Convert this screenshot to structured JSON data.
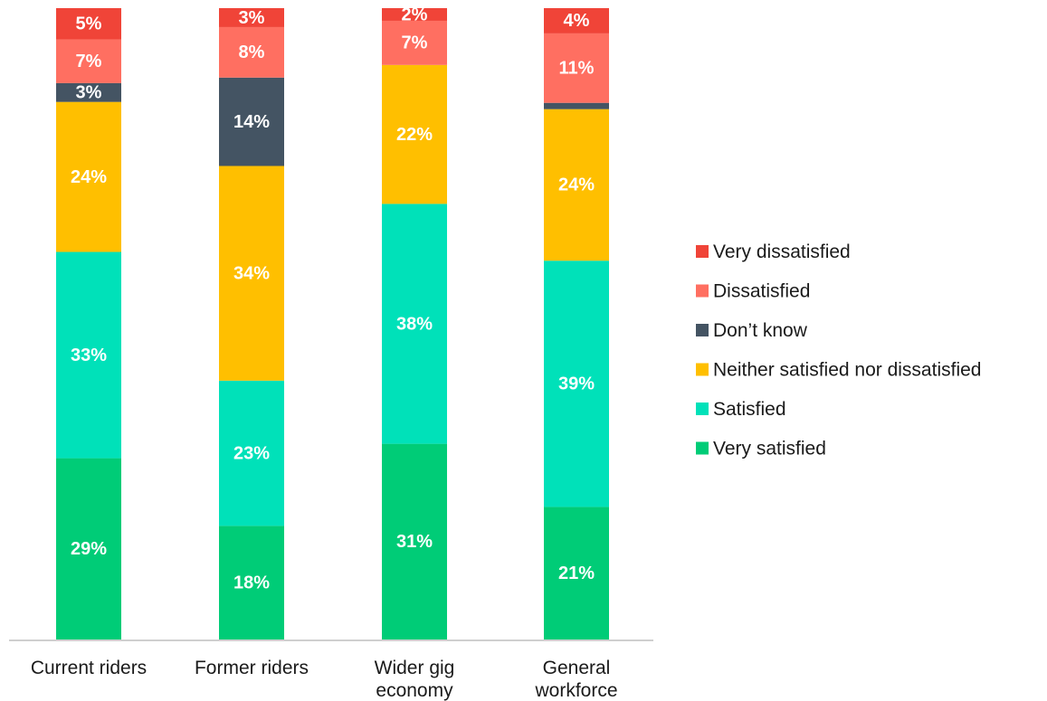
{
  "chart_data": {
    "type": "bar",
    "stacked": true,
    "normalized": true,
    "title": "",
    "xlabel": "",
    "ylabel": "",
    "ylim": [
      0,
      100
    ],
    "grid": false,
    "legend_position": "right",
    "categories": [
      [
        "Current riders"
      ],
      [
        "Former riders"
      ],
      [
        "Wider gig",
        "economy"
      ],
      [
        "General",
        "workforce"
      ]
    ],
    "series": [
      {
        "name": "Very satisfied",
        "color": "#00CC77",
        "values": [
          29,
          18,
          31,
          21
        ],
        "labels": [
          "29%",
          "18%",
          "31%",
          "21%"
        ]
      },
      {
        "name": "Satisfied",
        "color": "#00E1B9",
        "values": [
          33,
          23,
          38,
          39
        ],
        "labels": [
          "33%",
          "23%",
          "38%",
          "39%"
        ]
      },
      {
        "name": "Neither satisfied nor dissatisfied",
        "color": "#FFBF00",
        "values": [
          24,
          34,
          22,
          24
        ],
        "labels": [
          "24%",
          "34%",
          "22%",
          "24%"
        ]
      },
      {
        "name": "Don’t know",
        "color": "#445463",
        "values": [
          3,
          14,
          0,
          1
        ],
        "labels": [
          "3%",
          "14%",
          "",
          ""
        ]
      },
      {
        "name": "Dissatisfied",
        "color": "#FF6F61",
        "values": [
          7,
          8,
          7,
          11
        ],
        "labels": [
          "7%",
          "8%",
          "7%",
          "11%"
        ]
      },
      {
        "name": "Very dissatisfied",
        "color": "#F04438",
        "values": [
          5,
          3,
          2,
          4
        ],
        "labels": [
          "5%",
          "3%",
          "2%",
          "4%"
        ]
      }
    ],
    "legend_order": [
      "Very dissatisfied",
      "Dissatisfied",
      "Don’t know",
      "Neither satisfied nor dissatisfied",
      "Satisfied",
      "Very satisfied"
    ]
  }
}
